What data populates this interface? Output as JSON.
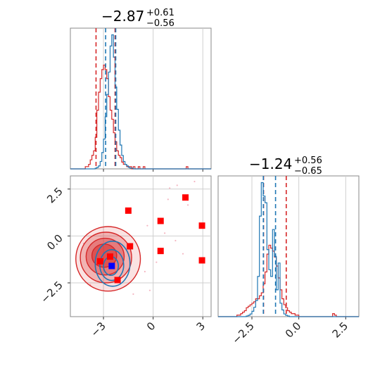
{
  "chart_data": {
    "type": "corner",
    "colors": {
      "red": "#d62728",
      "blue": "#1f77b4",
      "marker_red": "#ff0000",
      "marker_blue": "#0000ff",
      "grid": "#cfcfcf"
    },
    "parameters": [
      {
        "title_main": "−2.87",
        "title_plus": "+0.61",
        "title_minus": "−0.56",
        "lines_red": [
          -3.45,
          -2.3
        ],
        "lines_blue": [
          -2.87,
          -2.26
        ],
        "xlim": [
          -5,
          3.5
        ]
      },
      {
        "title_main": "−1.24",
        "title_plus": "+0.56",
        "title_minus": "−0.65",
        "lines_red": [
          -1.88,
          -0.67
        ],
        "lines_blue": [
          -1.89,
          -1.24
        ],
        "xlim": [
          -4.3,
          3.2
        ]
      }
    ],
    "panel_x": {
      "xlim": [
        -5,
        3.5
      ],
      "ticks": [
        -3,
        0,
        3
      ],
      "ticklabels": [
        "−3",
        "0",
        "3"
      ]
    },
    "panel_y": {
      "ylim": [
        -4.3,
        3.2
      ],
      "ticks": [
        -2.5,
        0,
        2.5
      ],
      "ticklabels": [
        "−2.5",
        "0.0",
        "2.5"
      ]
    },
    "panel_hist2": {
      "ticks": [
        -2.5,
        0,
        2.5
      ],
      "ticklabels": [
        "−2.5",
        "0.0",
        "2.5"
      ]
    },
    "hist1": {
      "bin_edges": [
        -5.0,
        3.5
      ],
      "red": [
        0,
        0,
        0,
        0,
        0,
        0,
        0,
        0,
        0,
        1,
        1,
        2,
        4,
        6,
        8,
        14,
        26,
        34,
        40,
        44,
        46,
        44,
        40,
        32,
        26,
        22,
        16,
        12,
        8,
        6,
        5,
        3,
        2,
        2,
        1,
        1,
        1,
        0,
        1,
        0,
        0,
        1,
        0,
        0,
        1,
        0,
        0,
        0,
        0,
        0,
        0,
        0,
        0,
        0,
        0,
        0,
        0,
        0,
        0,
        0,
        0,
        0,
        0,
        0,
        0,
        0,
        0,
        0,
        0,
        0,
        1,
        0,
        0,
        0,
        0,
        0,
        0,
        0,
        0,
        0,
        0,
        0,
        0,
        0,
        0
      ],
      "blue": [
        0,
        0,
        0,
        0,
        0,
        0,
        0,
        0,
        0,
        0,
        0,
        0,
        0,
        0,
        0,
        1,
        2,
        4,
        10,
        22,
        40,
        70,
        100,
        130,
        165,
        180,
        150,
        110,
        80,
        52,
        32,
        18,
        10,
        6,
        4,
        2,
        1,
        1,
        0,
        0,
        0,
        0,
        0,
        0,
        0,
        0,
        0,
        0,
        0,
        0,
        0,
        0,
        0,
        0,
        0,
        0,
        0,
        0,
        0,
        0,
        0,
        0,
        0,
        0,
        0,
        0,
        0,
        0,
        0,
        0,
        0,
        0,
        0,
        0,
        0,
        0,
        0,
        0,
        0,
        0,
        0,
        0,
        0,
        0,
        0
      ]
    },
    "hist2": {
      "bin_edges": [
        -4.3,
        3.2
      ],
      "red": [
        0,
        0,
        0,
        0,
        0,
        0,
        0,
        0,
        0,
        0,
        1,
        1,
        2,
        3,
        4,
        6,
        7,
        8,
        9,
        10,
        12,
        12,
        14,
        16,
        22,
        30,
        42,
        48,
        46,
        44,
        40,
        34,
        26,
        18,
        12,
        8,
        6,
        4,
        3,
        2,
        2,
        1,
        1,
        0,
        0,
        0,
        0,
        0,
        0,
        0,
        0,
        0,
        0,
        0,
        0,
        0,
        0,
        0,
        0,
        0,
        0,
        2,
        1,
        0,
        0,
        0,
        0,
        0,
        0,
        0,
        0,
        0,
        0,
        0,
        0
      ],
      "blue": [
        0,
        0,
        0,
        0,
        0,
        0,
        0,
        0,
        0,
        0,
        0,
        0,
        0,
        0,
        0,
        1,
        2,
        4,
        8,
        14,
        24,
        60,
        150,
        200,
        180,
        170,
        100,
        70,
        60,
        130,
        90,
        40,
        80,
        20,
        10,
        4,
        2,
        1,
        0,
        0,
        0,
        0,
        0,
        0,
        0,
        0,
        0,
        0,
        0,
        0,
        0,
        0,
        0,
        0,
        0,
        0,
        0,
        0,
        0,
        0,
        0,
        0,
        0,
        0,
        0,
        0,
        0,
        0,
        0,
        0,
        0,
        0,
        0,
        0,
        0
      ]
    },
    "markers_red": [
      [
        -1.5,
        1.35
      ],
      [
        1.95,
        2.05
      ],
      [
        0.45,
        0.8
      ],
      [
        2.95,
        0.55
      ],
      [
        -1.4,
        -0.55
      ],
      [
        0.45,
        -0.8
      ],
      [
        2.95,
        -1.3
      ],
      [
        -3.2,
        -1.35
      ],
      [
        -2.6,
        -1.1
      ],
      [
        -2.15,
        -2.35
      ]
    ],
    "marker_blue": [
      -2.5,
      -1.6
    ],
    "scatter_pink": [
      [
        1.0,
        2.55
      ],
      [
        1.45,
        2.7
      ],
      [
        0.9,
        1.95
      ],
      [
        2.1,
        1.65
      ],
      [
        0.7,
        0.15
      ],
      [
        1.35,
        -0.25
      ],
      [
        -0.5,
        -1.9
      ],
      [
        -0.2,
        -2.9
      ],
      [
        1.8,
        -0.95
      ],
      [
        -0.35,
        0.55
      ],
      [
        2.5,
        2.9
      ],
      [
        -3.8,
        -2.6
      ],
      [
        -1.2,
        -3.1
      ],
      [
        0.2,
        -1.4
      ],
      [
        -4.2,
        -0.4
      ]
    ],
    "contours_red": [
      {
        "cx": -2.72,
        "cy": -1.22,
        "rx": 1.95,
        "ry": 1.72,
        "alpha": 0.22
      },
      {
        "cx": -2.85,
        "cy": -1.15,
        "rx": 1.55,
        "ry": 1.35,
        "alpha": 0.42
      },
      {
        "cx": -2.9,
        "cy": -1.1,
        "rx": 1.15,
        "ry": 0.98,
        "alpha": 0.65
      },
      {
        "cx": -2.95,
        "cy": -1.05,
        "rx": 0.75,
        "ry": 0.62,
        "alpha": 0.85
      }
    ],
    "contours_blue": [
      {
        "cx": -2.45,
        "cy": -1.48,
        "rx": 1.05,
        "ry": 1.2
      },
      {
        "cx": -2.5,
        "cy": -1.55,
        "rx": 0.72,
        "ry": 0.82
      },
      {
        "cx": -2.55,
        "cy": -1.6,
        "rx": 0.45,
        "ry": 0.5
      }
    ]
  }
}
